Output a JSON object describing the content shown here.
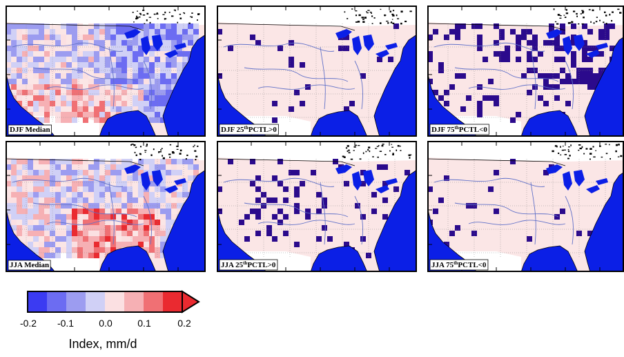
{
  "colors": {
    "ocean": "#0b1fe6",
    "land_bg": "#fbe6e6",
    "hit": "#2b0a8c",
    "border": "#5a66b0",
    "river": "#6070c8",
    "scale": [
      "#3b3bf2",
      "#6c6cf2",
      "#9c9cf0",
      "#d0d0f6",
      "#fbe0e2",
      "#f6b0b4",
      "#f07074",
      "#ea2a30"
    ]
  },
  "panels": [
    {
      "id": "djf-median",
      "label_prefix": "DJF Median",
      "sup": "",
      "label_suffix": "",
      "kind": "median",
      "season": "DJF"
    },
    {
      "id": "djf-p25",
      "label_prefix": "DJF 25",
      "sup": "th",
      "label_suffix": "PCTL>0",
      "kind": "hits",
      "density": "low"
    },
    {
      "id": "djf-p75",
      "label_prefix": "DJF 75",
      "sup": "th",
      "label_suffix": "PCTL<0",
      "kind": "hits",
      "density": "high"
    },
    {
      "id": "jja-median",
      "label_prefix": "JJA Median",
      "sup": "",
      "label_suffix": "",
      "kind": "median",
      "season": "JJA"
    },
    {
      "id": "jja-p25",
      "label_prefix": "JJA 25",
      "sup": "th",
      "label_suffix": "PCTL>0",
      "kind": "hits",
      "density": "medium"
    },
    {
      "id": "jja-p75",
      "label_prefix": "JJA 75",
      "sup": "th",
      "label_suffix": "PCTL<0",
      "kind": "hits",
      "density": "low"
    }
  ],
  "colorbar": {
    "ticks": [
      "-0.2",
      "-0.1",
      "0.0",
      "0.1",
      "0.2"
    ],
    "title": "Index, mm/d"
  }
}
